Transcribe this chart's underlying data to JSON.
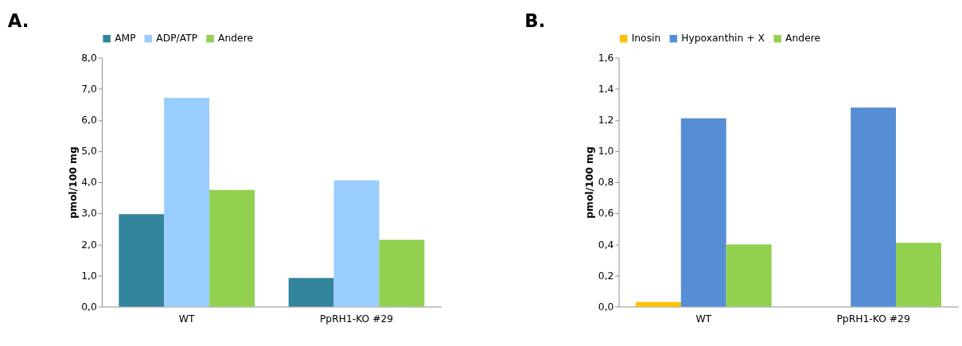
{
  "chart_data": [
    {
      "type": "bar",
      "title": "A.",
      "ylabel": "pmol/100 mg",
      "categories": [
        "WT",
        "PpRH1-KO #29"
      ],
      "series": [
        {
          "name": "AMP",
          "color": "#31849b",
          "values": [
            2.97,
            0.92
          ]
        },
        {
          "name": "ADP/ATP",
          "color": "#99ccff",
          "values": [
            6.71,
            4.06
          ]
        },
        {
          "name": "Andere",
          "color": "#92d050",
          "values": [
            3.75,
            2.15
          ]
        }
      ],
      "ylim": [
        0,
        8
      ],
      "yticks": [
        {
          "value": 0,
          "label": "0,0"
        },
        {
          "value": 1,
          "label": "1,0"
        },
        {
          "value": 2,
          "label": "2,0"
        },
        {
          "value": 3,
          "label": "3,0"
        },
        {
          "value": 4,
          "label": "4,0"
        },
        {
          "value": 5,
          "label": "5,0"
        },
        {
          "value": 6,
          "label": "6,0"
        },
        {
          "value": 7,
          "label": "7,0"
        },
        {
          "value": 8,
          "label": "8,0"
        }
      ],
      "grid": false,
      "legend": "top"
    },
    {
      "type": "bar",
      "title": "B.",
      "ylabel": "pmol/100 mg",
      "categories": [
        "WT",
        "PpRH1-KO #29"
      ],
      "series": [
        {
          "name": "Inosin",
          "color": "#ffc000",
          "values": [
            0.03,
            0
          ]
        },
        {
          "name": "Hypoxanthin + X",
          "color": "#558ed5",
          "values": [
            1.21,
            1.28
          ]
        },
        {
          "name": "Andere",
          "color": "#92d050",
          "values": [
            0.4,
            0.41
          ]
        }
      ],
      "ylim": [
        0,
        1.6
      ],
      "yticks": [
        {
          "value": 0,
          "label": "0,0"
        },
        {
          "value": 0.2,
          "label": "0,2"
        },
        {
          "value": 0.4,
          "label": "0,4"
        },
        {
          "value": 0.6,
          "label": "0,6"
        },
        {
          "value": 0.8,
          "label": "0,8"
        },
        {
          "value": 1.0,
          "label": "1,0"
        },
        {
          "value": 1.2,
          "label": "1,2"
        },
        {
          "value": 1.4,
          "label": "1,4"
        },
        {
          "value": 1.6,
          "label": "1,6"
        }
      ],
      "grid": false,
      "legend": "top"
    }
  ]
}
